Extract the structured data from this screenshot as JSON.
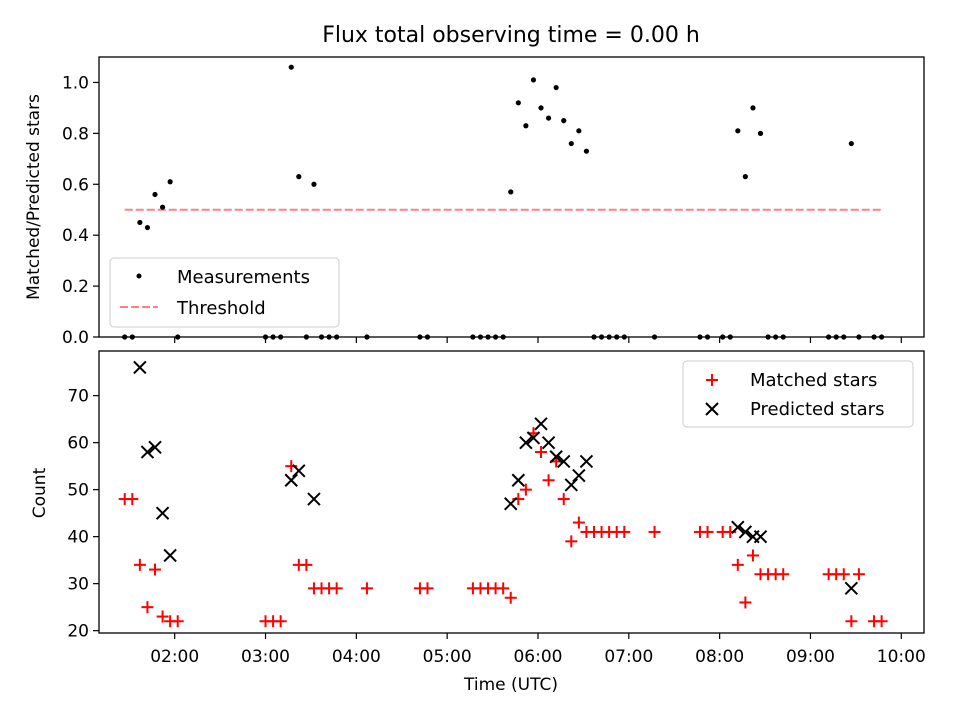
{
  "figure": {
    "title": "Flux total observing time = 0.00 h"
  },
  "chart_data": [
    {
      "type": "scatter",
      "ylabel": "Matched/Predicted stars",
      "xlim": [
        "01:10",
        "10:15"
      ],
      "ylim": [
        0,
        1.1
      ],
      "yticks": [
        0.0,
        0.2,
        0.4,
        0.6,
        0.8,
        1.0
      ],
      "ytick_labels": [
        "0.0",
        "0.2",
        "0.4",
        "0.6",
        "0.8",
        "1.0"
      ],
      "grid": false,
      "legend": "lower-left",
      "series": [
        {
          "name": "Measurements",
          "color": "#000000",
          "marker": "dot",
          "points": [
            [
              "01:27",
              0.0
            ],
            [
              "01:32",
              0.0
            ],
            [
              "01:37",
              0.45
            ],
            [
              "01:42",
              0.43
            ],
            [
              "01:47",
              0.56
            ],
            [
              "01:52",
              0.51
            ],
            [
              "01:57",
              0.61
            ],
            [
              "02:02",
              0.0
            ],
            [
              "03:00",
              0.0
            ],
            [
              "03:05",
              0.0
            ],
            [
              "03:10",
              0.0
            ],
            [
              "03:17",
              1.06
            ],
            [
              "03:22",
              0.63
            ],
            [
              "03:27",
              0.0
            ],
            [
              "03:32",
              0.6
            ],
            [
              "03:37",
              0.0
            ],
            [
              "03:42",
              0.0
            ],
            [
              "03:47",
              0.0
            ],
            [
              "04:07",
              0.0
            ],
            [
              "04:42",
              0.0
            ],
            [
              "04:47",
              0.0
            ],
            [
              "05:17",
              0.0
            ],
            [
              "05:22",
              0.0
            ],
            [
              "05:27",
              0.0
            ],
            [
              "05:32",
              0.0
            ],
            [
              "05:37",
              0.0
            ],
            [
              "05:42",
              0.57
            ],
            [
              "05:47",
              0.92
            ],
            [
              "05:52",
              0.83
            ],
            [
              "05:57",
              1.01
            ],
            [
              "06:02",
              0.9
            ],
            [
              "06:07",
              0.86
            ],
            [
              "06:12",
              0.98
            ],
            [
              "06:17",
              0.85
            ],
            [
              "06:22",
              0.76
            ],
            [
              "06:27",
              0.81
            ],
            [
              "06:32",
              0.73
            ],
            [
              "06:37",
              0.0
            ],
            [
              "06:42",
              0.0
            ],
            [
              "06:47",
              0.0
            ],
            [
              "06:52",
              0.0
            ],
            [
              "06:57",
              0.0
            ],
            [
              "07:17",
              0.0
            ],
            [
              "07:47",
              0.0
            ],
            [
              "07:52",
              0.0
            ],
            [
              "08:02",
              0.0
            ],
            [
              "08:07",
              0.0
            ],
            [
              "08:12",
              0.81
            ],
            [
              "08:17",
              0.63
            ],
            [
              "08:22",
              0.9
            ],
            [
              "08:27",
              0.8
            ],
            [
              "08:32",
              0.0
            ],
            [
              "08:37",
              0.0
            ],
            [
              "08:42",
              0.0
            ],
            [
              "09:12",
              0.0
            ],
            [
              "09:17",
              0.0
            ],
            [
              "09:22",
              0.0
            ],
            [
              "09:27",
              0.76
            ],
            [
              "09:32",
              0.0
            ],
            [
              "09:42",
              0.0
            ],
            [
              "09:47",
              0.0
            ]
          ]
        },
        {
          "name": "Threshold",
          "color": "#ff8080",
          "style": "dashed",
          "points": [
            [
              "01:27",
              0.5
            ],
            [
              "09:47",
              0.5
            ]
          ]
        }
      ]
    },
    {
      "type": "scatter",
      "xlabel": "Time (UTC)",
      "ylabel": "Count",
      "xlim": [
        "01:10",
        "10:15"
      ],
      "ylim": [
        19.5,
        79.5
      ],
      "yticks": [
        20,
        30,
        40,
        50,
        60,
        70
      ],
      "ytick_labels": [
        "20",
        "30",
        "40",
        "50",
        "60",
        "70"
      ],
      "xticks": [
        "02:00",
        "03:00",
        "04:00",
        "05:00",
        "06:00",
        "07:00",
        "08:00",
        "09:00",
        "10:00"
      ],
      "grid": false,
      "legend": "top-right",
      "series": [
        {
          "name": "Matched stars",
          "color": "#ff0000",
          "marker": "plus",
          "points": [
            [
              "01:27",
              48
            ],
            [
              "01:32",
              48
            ],
            [
              "01:37",
              34
            ],
            [
              "01:42",
              25
            ],
            [
              "01:47",
              33
            ],
            [
              "01:52",
              23
            ],
            [
              "01:57",
              22
            ],
            [
              "02:02",
              22
            ],
            [
              "03:00",
              22
            ],
            [
              "03:05",
              22
            ],
            [
              "03:10",
              22
            ],
            [
              "03:17",
              55
            ],
            [
              "03:22",
              34
            ],
            [
              "03:27",
              34
            ],
            [
              "03:32",
              29
            ],
            [
              "03:37",
              29
            ],
            [
              "03:42",
              29
            ],
            [
              "03:47",
              29
            ],
            [
              "04:07",
              29
            ],
            [
              "04:42",
              29
            ],
            [
              "04:47",
              29
            ],
            [
              "05:17",
              29
            ],
            [
              "05:22",
              29
            ],
            [
              "05:27",
              29
            ],
            [
              "05:32",
              29
            ],
            [
              "05:37",
              29
            ],
            [
              "05:42",
              27
            ],
            [
              "05:47",
              48
            ],
            [
              "05:52",
              50
            ],
            [
              "05:57",
              62
            ],
            [
              "06:02",
              58
            ],
            [
              "06:07",
              52
            ],
            [
              "06:12",
              56
            ],
            [
              "06:17",
              48
            ],
            [
              "06:22",
              39
            ],
            [
              "06:27",
              43
            ],
            [
              "06:32",
              41
            ],
            [
              "06:37",
              41
            ],
            [
              "06:42",
              41
            ],
            [
              "06:47",
              41
            ],
            [
              "06:52",
              41
            ],
            [
              "06:57",
              41
            ],
            [
              "07:17",
              41
            ],
            [
              "07:47",
              41
            ],
            [
              "07:52",
              41
            ],
            [
              "08:02",
              41
            ],
            [
              "08:07",
              41
            ],
            [
              "08:12",
              34
            ],
            [
              "08:17",
              26
            ],
            [
              "08:22",
              36
            ],
            [
              "08:27",
              32
            ],
            [
              "08:32",
              32
            ],
            [
              "08:37",
              32
            ],
            [
              "08:42",
              32
            ],
            [
              "09:12",
              32
            ],
            [
              "09:17",
              32
            ],
            [
              "09:22",
              32
            ],
            [
              "09:27",
              22
            ],
            [
              "09:32",
              32
            ],
            [
              "09:42",
              22
            ],
            [
              "09:47",
              22
            ]
          ]
        },
        {
          "name": "Predicted stars",
          "color": "#000000",
          "marker": "x",
          "points": [
            [
              "01:37",
              76
            ],
            [
              "01:42",
              58
            ],
            [
              "01:47",
              59
            ],
            [
              "01:52",
              45
            ],
            [
              "01:57",
              36
            ],
            [
              "03:17",
              52
            ],
            [
              "03:22",
              54
            ],
            [
              "03:32",
              48
            ],
            [
              "05:42",
              47
            ],
            [
              "05:47",
              52
            ],
            [
              "05:52",
              60
            ],
            [
              "05:57",
              61
            ],
            [
              "06:02",
              64
            ],
            [
              "06:07",
              60
            ],
            [
              "06:12",
              57
            ],
            [
              "06:17",
              56
            ],
            [
              "06:22",
              51
            ],
            [
              "06:27",
              53
            ],
            [
              "06:32",
              56
            ],
            [
              "08:12",
              42
            ],
            [
              "08:17",
              41
            ],
            [
              "08:22",
              40
            ],
            [
              "08:27",
              40
            ],
            [
              "09:27",
              29
            ]
          ]
        }
      ]
    }
  ]
}
